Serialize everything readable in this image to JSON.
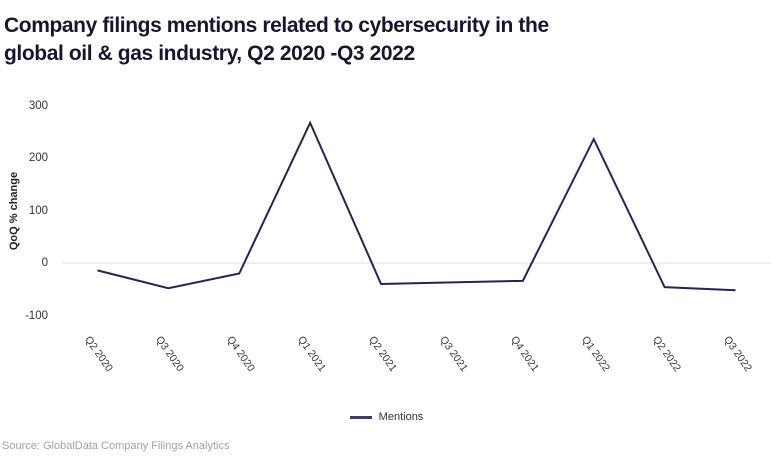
{
  "page": {
    "title_line1": "Company filings mentions related to cybersecurity in the",
    "title_line2": "global oil & gas industry, Q2 2020 -Q3 2022",
    "source": "Source: GlobalData Company Filings Analytics"
  },
  "chart_data": {
    "type": "line",
    "title": "Company filings mentions related to cybersecurity in the global oil & gas industry, Q2 2020 -Q3 2022",
    "categories": [
      "Q2 2020",
      "Q3 2020",
      "Q4 2020",
      "Q1 2021",
      "Q2 2021",
      "Q3 2021",
      "Q4 2021",
      "Q1 2022",
      "Q2 2022",
      "Q3 2022"
    ],
    "series": [
      {
        "name": "Mentions",
        "values": [
          -14,
          -48,
          -20,
          267,
          -40,
          -37,
          -34,
          236,
          -46,
          -52
        ]
      }
    ],
    "xlabel": "",
    "ylabel": "QoQ % change",
    "yticks": [
      300,
      200,
      100,
      0,
      -100
    ],
    "ylim": [
      -100,
      300
    ],
    "grid": "zero-line-only",
    "legend_position": "bottom-center",
    "x_label_rotation_deg": 55
  },
  "colors": {
    "title_text": "#16162e",
    "line": "#26264d",
    "legend_swatch": "#3c3c64",
    "zero_line": "#e1e1e1",
    "axis_text": "#333333",
    "source_text": "#a2a2a2"
  }
}
